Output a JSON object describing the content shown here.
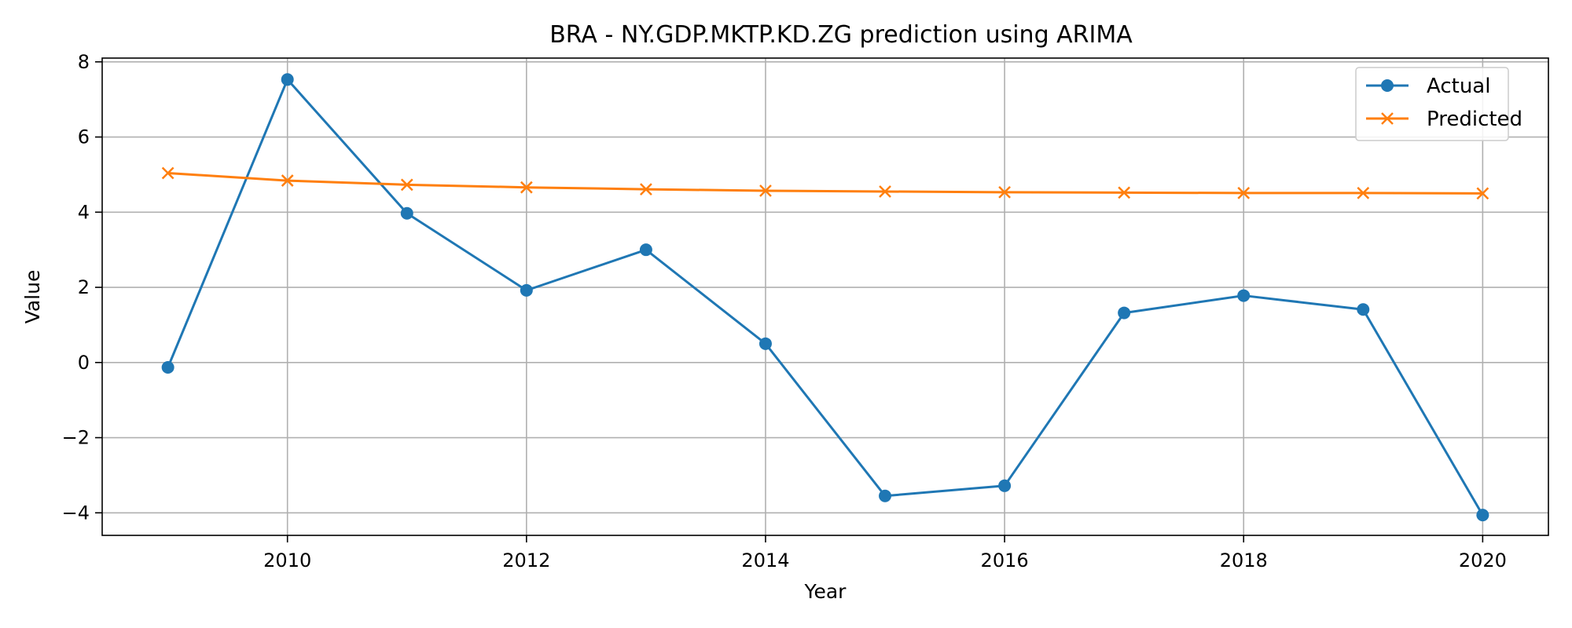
{
  "chart_data": {
    "type": "line",
    "title": "BRA - NY.GDP.MKTP.KD.ZG prediction using ARIMA",
    "xlabel": "Year",
    "ylabel": "Value",
    "x": [
      2009,
      2010,
      2011,
      2012,
      2013,
      2014,
      2015,
      2016,
      2017,
      2018,
      2019,
      2020
    ],
    "xlim": [
      2008.45,
      2020.55
    ],
    "ylim": [
      -4.6,
      8.1
    ],
    "x_ticks": [
      2010,
      2012,
      2014,
      2016,
      2018,
      2020
    ],
    "y_ticks": [
      -4,
      -2,
      0,
      2,
      4,
      6,
      8
    ],
    "y_tick_labels": [
      "−4",
      "−2",
      "0",
      "2",
      "4",
      "6",
      "8"
    ],
    "grid": true,
    "legend_position": "top-right",
    "series": [
      {
        "name": "Actual",
        "marker": "circle",
        "color": "#1f77b4",
        "values": [
          -0.13,
          7.53,
          3.97,
          1.92,
          3.0,
          0.5,
          -3.55,
          -3.28,
          1.32,
          1.78,
          1.41,
          -4.06
        ]
      },
      {
        "name": "Predicted",
        "marker": "x",
        "color": "#ff7f0e",
        "values": [
          5.04,
          4.84,
          4.73,
          4.66,
          4.61,
          4.57,
          4.55,
          4.53,
          4.52,
          4.51,
          4.51,
          4.5
        ]
      }
    ]
  }
}
